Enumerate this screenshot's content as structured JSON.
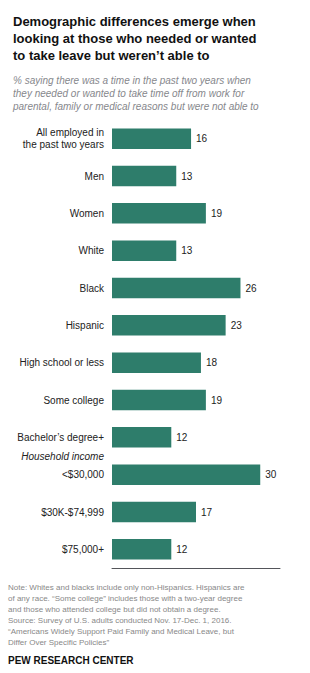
{
  "chart_data": {
    "type": "bar",
    "orientation": "horizontal",
    "title": "Demographic differences emerge when\nlooking at those who needed or wanted\nto take leave but weren’t able to",
    "subtitle": "% saying there was a time in the past two years when\nthey needed or wanted to take time off from work for\nparental, family or medical reasons but were not able to",
    "categories": [
      "All employed in\nthe past two years",
      "Men",
      "Women",
      "White",
      "Black",
      "Hispanic",
      "High school or less",
      "Some college",
      "Bachelor’s degree+",
      "<$30,000",
      "$30K-$74,999",
      "$75,000+"
    ],
    "values": [
      16,
      13,
      19,
      13,
      26,
      23,
      18,
      19,
      12,
      30,
      17,
      12
    ],
    "color": "#2e7d6b",
    "xlim": [
      0,
      34
    ],
    "data_labels": true,
    "tick_labels": "y",
    "grid": false,
    "annotations": [
      {
        "text": "Household income",
        "above": "<$30,000"
      }
    ],
    "note": "Note: Whites and blacks include only non-Hispanics. Hispanics are\nof any race. “Some college” includes those with a two-year degree\nand those who attended college but did not obtain a degree.\nSource: Survey of U.S. adults conducted Nov. 17-Dec. 1, 2016.\n“Americans Widely Support Paid Family and Medical Leave, but\nDiffer Over Specific Policies”",
    "footer": "PEW RESEARCH CENTER"
  }
}
